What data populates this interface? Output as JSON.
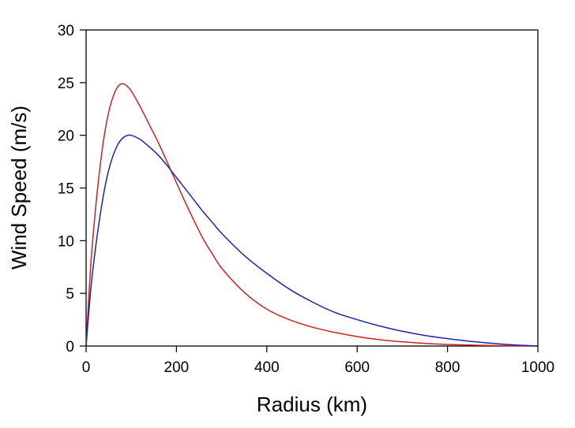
{
  "chart_data": {
    "type": "line",
    "title": "",
    "xlabel": "Radius (km)",
    "ylabel": "Wind Speed (m/s)",
    "xlim": [
      0,
      1000
    ],
    "ylim": [
      0,
      30
    ],
    "xticks": [
      0,
      200,
      400,
      600,
      800,
      1000
    ],
    "yticks": [
      0,
      5,
      10,
      15,
      20,
      25,
      30
    ],
    "grid": false,
    "legend": "none",
    "series": [
      {
        "color": "#cc2222",
        "x": [
          0,
          10,
          20,
          30,
          40,
          50,
          60,
          70,
          80,
          90,
          100,
          120,
          140,
          160,
          180,
          200,
          220,
          240,
          260,
          280,
          300,
          350,
          400,
          450,
          500,
          550,
          600,
          650,
          700,
          750,
          800,
          850,
          900,
          950,
          1000
        ],
        "y": [
          0,
          7.5,
          12.6,
          16.7,
          19.9,
          22.2,
          23.7,
          24.6,
          24.9,
          24.7,
          24.2,
          22.7,
          21.0,
          19.3,
          17.4,
          15.5,
          13.6,
          11.8,
          10.1,
          8.7,
          7.4,
          5.1,
          3.5,
          2.5,
          1.8,
          1.3,
          0.9,
          0.6,
          0.4,
          0.25,
          0.15,
          0.09,
          0.05,
          0.02,
          0
        ]
      },
      {
        "color": "#2222aa",
        "x": [
          0,
          10,
          20,
          30,
          40,
          50,
          60,
          70,
          80,
          90,
          100,
          120,
          140,
          160,
          180,
          200,
          220,
          240,
          260,
          280,
          300,
          350,
          400,
          450,
          500,
          550,
          600,
          650,
          700,
          750,
          800,
          850,
          900,
          950,
          1000
        ],
        "y": [
          0,
          5.2,
          9.0,
          12.1,
          14.7,
          16.7,
          18.1,
          19.1,
          19.7,
          19.97,
          20.0,
          19.6,
          18.9,
          18.1,
          17.1,
          16.0,
          14.9,
          13.8,
          12.7,
          11.7,
          10.7,
          8.6,
          6.9,
          5.4,
          4.2,
          3.2,
          2.5,
          1.9,
          1.4,
          1.0,
          0.7,
          0.45,
          0.25,
          0.1,
          0
        ]
      }
    ]
  }
}
